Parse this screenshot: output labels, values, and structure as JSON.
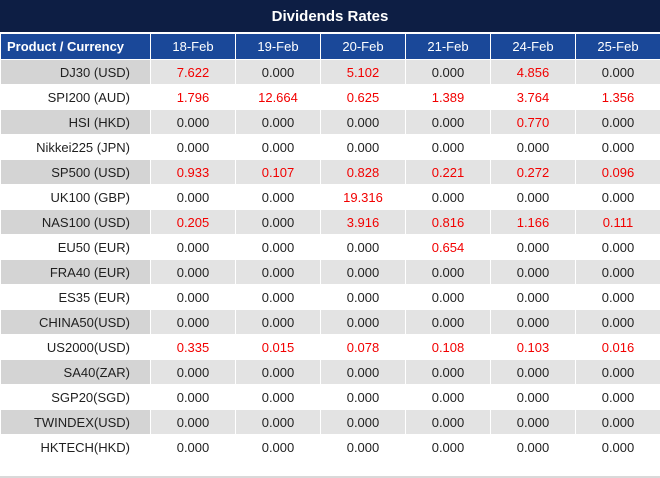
{
  "chart_data": {
    "type": "table",
    "title": "Dividends Rates",
    "columns": [
      "Product / Currency",
      "18-Feb",
      "19-Feb",
      "20-Feb",
      "21-Feb",
      "24-Feb",
      "25-Feb"
    ],
    "rows": [
      {
        "label": "DJ30 (USD)",
        "values": [
          "7.622",
          "0.000",
          "5.102",
          "0.000",
          "4.856",
          "0.000"
        ]
      },
      {
        "label": "SPI200 (AUD)",
        "values": [
          "1.796",
          "12.664",
          "0.625",
          "1.389",
          "3.764",
          "1.356"
        ]
      },
      {
        "label": "HSI (HKD)",
        "values": [
          "0.000",
          "0.000",
          "0.000",
          "0.000",
          "0.770",
          "0.000"
        ]
      },
      {
        "label": "Nikkei225 (JPN)",
        "values": [
          "0.000",
          "0.000",
          "0.000",
          "0.000",
          "0.000",
          "0.000"
        ]
      },
      {
        "label": "SP500 (USD)",
        "values": [
          "0.933",
          "0.107",
          "0.828",
          "0.221",
          "0.272",
          "0.096"
        ]
      },
      {
        "label": "UK100 (GBP)",
        "values": [
          "0.000",
          "0.000",
          "19.316",
          "0.000",
          "0.000",
          "0.000"
        ]
      },
      {
        "label": "NAS100 (USD)",
        "values": [
          "0.205",
          "0.000",
          "3.916",
          "0.816",
          "1.166",
          "0.111"
        ]
      },
      {
        "label": "EU50 (EUR)",
        "values": [
          "0.000",
          "0.000",
          "0.000",
          "0.654",
          "0.000",
          "0.000"
        ]
      },
      {
        "label": "FRA40 (EUR)",
        "values": [
          "0.000",
          "0.000",
          "0.000",
          "0.000",
          "0.000",
          "0.000"
        ]
      },
      {
        "label": "ES35 (EUR)",
        "values": [
          "0.000",
          "0.000",
          "0.000",
          "0.000",
          "0.000",
          "0.000"
        ]
      },
      {
        "label": "CHINA50(USD)",
        "values": [
          "0.000",
          "0.000",
          "0.000",
          "0.000",
          "0.000",
          "0.000"
        ]
      },
      {
        "label": "US2000(USD)",
        "values": [
          "0.335",
          "0.015",
          "0.078",
          "0.108",
          "0.103",
          "0.016"
        ]
      },
      {
        "label": "SA40(ZAR)",
        "values": [
          "0.000",
          "0.000",
          "0.000",
          "0.000",
          "0.000",
          "0.000"
        ]
      },
      {
        "label": "SGP20(SGD)",
        "values": [
          "0.000",
          "0.000",
          "0.000",
          "0.000",
          "0.000",
          "0.000"
        ]
      },
      {
        "label": "TWINDEX(USD)",
        "values": [
          "0.000",
          "0.000",
          "0.000",
          "0.000",
          "0.000",
          "0.000"
        ]
      },
      {
        "label": "HKTECH(HKD)",
        "values": [
          "0.000",
          "0.000",
          "0.000",
          "0.000",
          "0.000",
          "0.000"
        ]
      }
    ],
    "layout": {
      "stripe_rows": "odd",
      "nonzero_values_highlighted": true
    }
  },
  "colors": {
    "title_bg": "#0d1e44",
    "header_bg": "#1a4899",
    "stripe_label": "#d4d4d4",
    "stripe_value": "#e3e3e3",
    "zero_text": "#1f1f1f",
    "nonzero_text": "#f20000",
    "header_text": "#ffffff",
    "grid": "#ffffff"
  }
}
